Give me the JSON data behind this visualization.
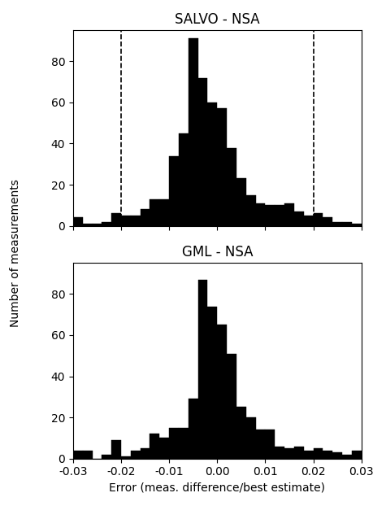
{
  "title1": "SALVO - NSA",
  "title2": "GML - NSA",
  "xlabel": "Error (meas. difference/best estimate)",
  "ylabel": "Number of measurements",
  "xlim": [
    -0.03,
    0.03
  ],
  "ylim1": [
    0,
    95
  ],
  "ylim2": [
    0,
    95
  ],
  "bin_edges": [
    -0.03,
    -0.028,
    -0.026,
    -0.024,
    -0.022,
    -0.02,
    -0.018,
    -0.016,
    -0.014,
    -0.012,
    -0.01,
    -0.008,
    -0.006,
    -0.004,
    -0.002,
    0.0,
    0.002,
    0.004,
    0.006,
    0.008,
    0.01,
    0.012,
    0.014,
    0.016,
    0.018,
    0.02,
    0.022,
    0.024,
    0.026,
    0.028,
    0.03
  ],
  "salvo_counts": [
    4,
    1,
    1,
    2,
    6,
    5,
    5,
    8,
    13,
    13,
    34,
    45,
    91,
    72,
    60,
    57,
    38,
    23,
    15,
    11,
    10,
    10,
    11,
    7,
    5,
    6,
    4,
    2,
    2,
    1
  ],
  "gml_counts": [
    4,
    4,
    0,
    2,
    9,
    1,
    4,
    5,
    12,
    10,
    15,
    15,
    29,
    87,
    74,
    65,
    51,
    25,
    20,
    14,
    14,
    6,
    5,
    6,
    4,
    5,
    4,
    3,
    2,
    4
  ],
  "dashed_lines1": [
    -0.02,
    0.02
  ],
  "bar_color": "#000000",
  "bar_edgecolor": "#000000",
  "yticks": [
    0,
    20,
    40,
    60,
    80
  ],
  "xticks": [
    -0.03,
    -0.02,
    -0.01,
    0.0,
    0.01,
    0.02,
    0.03
  ]
}
